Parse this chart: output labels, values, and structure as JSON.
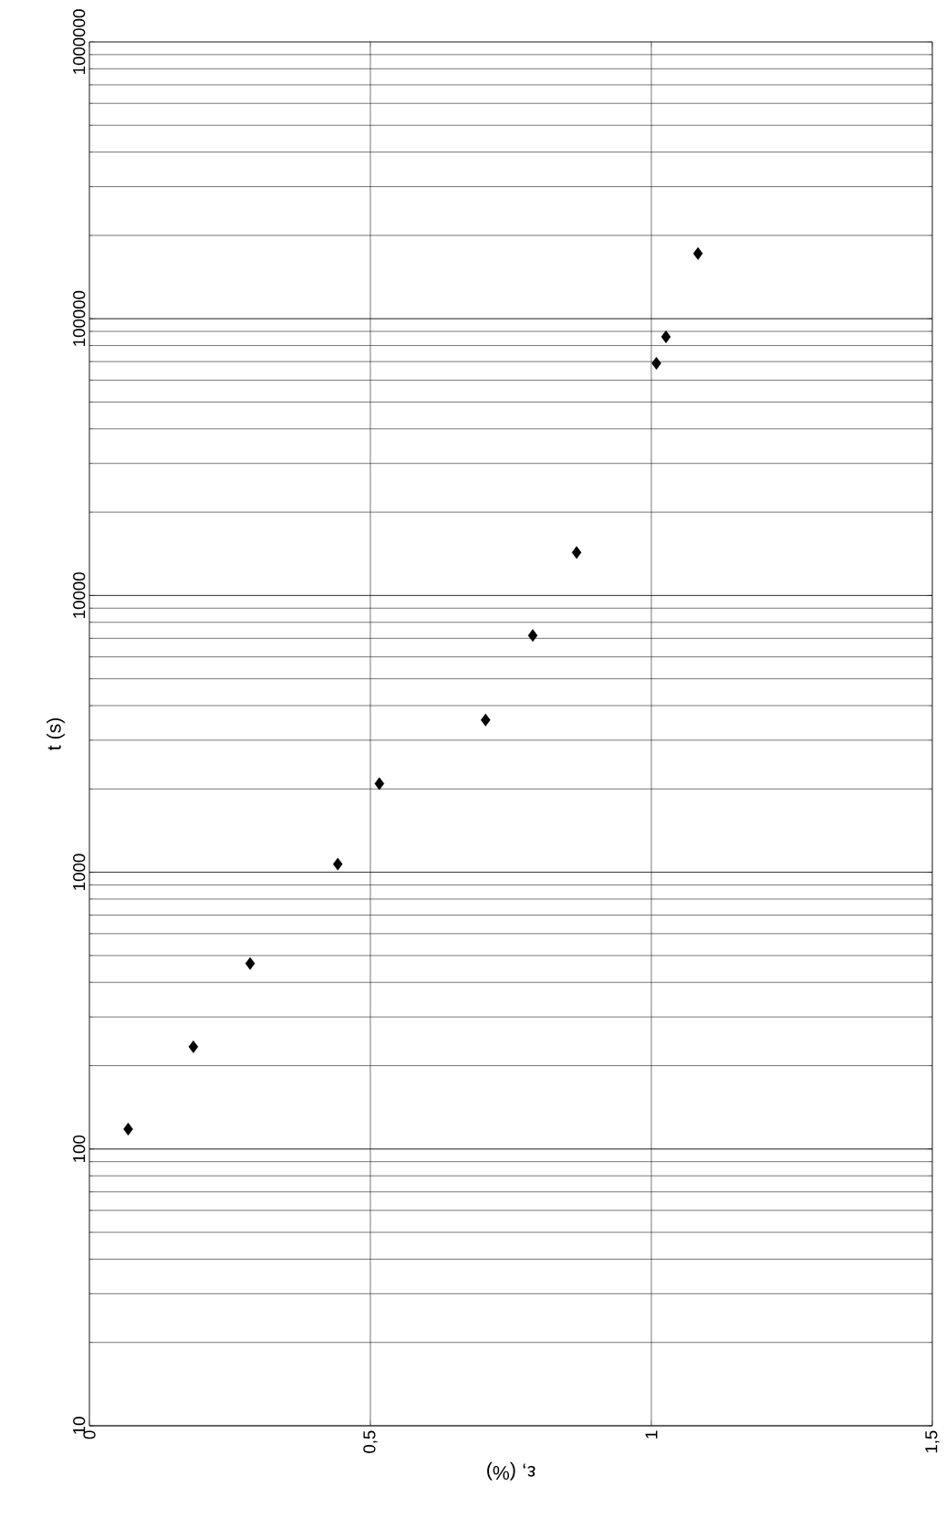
{
  "chart_data": {
    "type": "scatter",
    "xlabel": "ε, (%)",
    "ylabel": "t (s)",
    "x": [
      0.069,
      0.185,
      0.286,
      0.442,
      0.516,
      0.705,
      0.789,
      0.867,
      1.009,
      1.026,
      1.083
    ],
    "series": [
      {
        "color": "#000000",
        "values": [
          118,
          234,
          468,
          1070,
          2090,
          3550,
          7170,
          14300,
          69000,
          86000,
          172000
        ]
      }
    ],
    "xlim": [
      0,
      1.5
    ],
    "ylim": [
      10,
      1000000
    ],
    "xticks": [
      0,
      {
        "value": 0.5,
        "label": "0,5"
      },
      1,
      {
        "value": 1.5,
        "label": "1,5"
      }
    ],
    "yticks": [
      10,
      100,
      1000,
      10000,
      100000,
      1000000
    ],
    "log": "y",
    "grid": true,
    "marker": "diamond"
  }
}
